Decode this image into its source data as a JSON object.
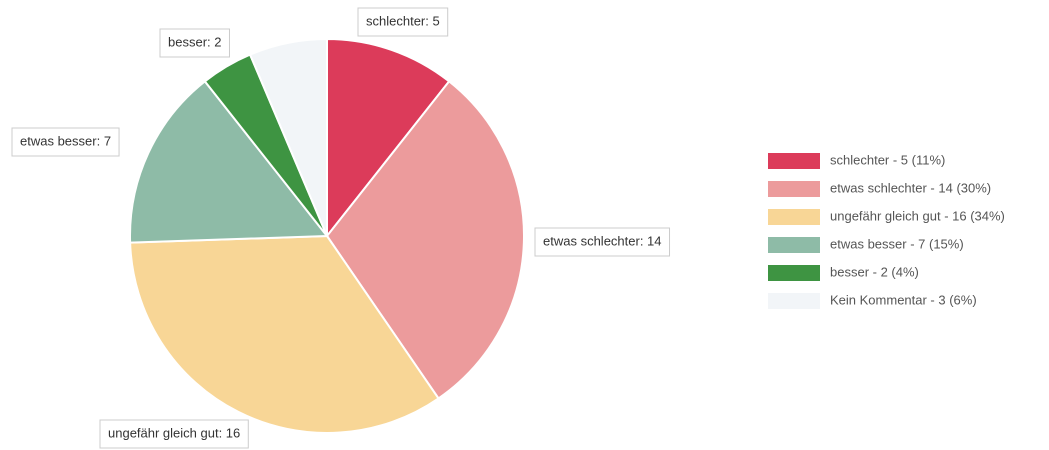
{
  "chart_data": {
    "type": "pie",
    "values": [
      5,
      14,
      16,
      7,
      2,
      3
    ],
    "value_labels": [
      "schlechter: 5",
      "etwas schlechter: 14",
      "ungefähr gleich gut: 16",
      "etwas besser: 7",
      "besser: 2",
      null
    ],
    "legend_labels": [
      "schlechter - 5 (11%)",
      "etwas schlechter - 14 (30%)",
      "ungefähr gleich gut - 16 (34%)",
      "etwas besser - 7 (15%)",
      "besser - 2 (4%)",
      "Kein Kommentar - 3 (6%)"
    ],
    "colors": [
      "#dc3b5a",
      "#ec9b9c",
      "#f8d696",
      "#8ebba7",
      "#3e9442",
      "#f2f5f8"
    ]
  }
}
